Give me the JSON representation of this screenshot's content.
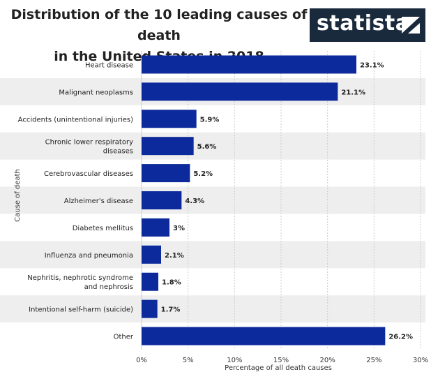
{
  "header": {
    "title_line1": "Distribution of the 10 leading causes of death",
    "title_line2": "in the United States in 2018",
    "logo_text": "statista"
  },
  "colors": {
    "bar": "#0d2a9c",
    "band": "#eeeeee",
    "grid": "#cccccc",
    "logo_bg": "#1a2a3d"
  },
  "chart_data": {
    "type": "bar",
    "orientation": "horizontal",
    "title": "Distribution of the 10 leading causes of death in the United States in 2018",
    "xlabel": "Percentage of all death causes",
    "ylabel": "Cause of death",
    "xlim": [
      0,
      30
    ],
    "xticks": [
      "0%",
      "5%",
      "10%",
      "15%",
      "20%",
      "25%",
      "30%"
    ],
    "categories": [
      "Heart disease",
      "Malignant neoplasms",
      "Accidents (unintentional injuries)",
      "Chronic lower respiratory diseases",
      "Cerebrovascular diseases",
      "Alzheimer's disease",
      "Diabetes mellitus",
      "Influenza and pneumonia",
      "Nephritis, nephrotic syndrome and nephrosis",
      "Intentional self-harm (suicide)",
      "Other"
    ],
    "category_lines": [
      [
        "Heart disease"
      ],
      [
        "Malignant neoplasms"
      ],
      [
        "Accidents (unintentional injuries)"
      ],
      [
        "Chronic lower respiratory",
        "diseases"
      ],
      [
        "Cerebrovascular diseases"
      ],
      [
        "Alzheimer's disease"
      ],
      [
        "Diabetes mellitus"
      ],
      [
        "Influenza and pneumonia"
      ],
      [
        "Nephritis, nephrotic syndrome",
        "and nephrosis"
      ],
      [
        "Intentional self-harm (suicide)"
      ],
      [
        "Other"
      ]
    ],
    "values": [
      23.1,
      21.1,
      5.9,
      5.6,
      5.2,
      4.3,
      3,
      2.1,
      1.8,
      1.7,
      26.2
    ],
    "value_labels": [
      "23.1%",
      "21.1%",
      "5.9%",
      "5.6%",
      "5.2%",
      "4.3%",
      "3%",
      "2.1%",
      "1.8%",
      "1.7%",
      "26.2%"
    ],
    "grid": true,
    "legend": "none"
  }
}
